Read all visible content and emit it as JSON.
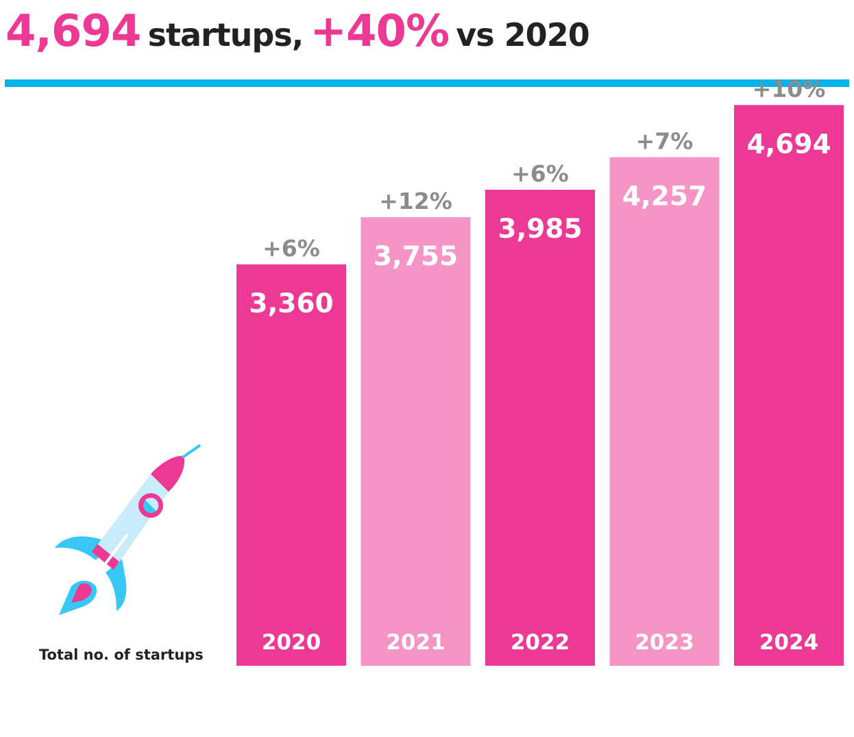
{
  "headline": {
    "total": "4,694",
    "text1": "startups,",
    "growth": "+40%",
    "text2": "vs 2020"
  },
  "axis_note": "Total no. of startups",
  "colors": {
    "accent_pink": "#ec3a94",
    "light_pink": "#f595c5",
    "divider_blue": "#00b3e8",
    "growth_gray": "#8c8c8c",
    "rocket_blue": "#38c6f4",
    "rocket_body": "#c9ecfb"
  },
  "icons": {
    "rocket": "rocket-icon"
  },
  "chart_data": {
    "type": "bar",
    "categories": [
      "2020",
      "2021",
      "2022",
      "2023",
      "2024"
    ],
    "values": [
      3360,
      3755,
      3985,
      4257,
      4694
    ],
    "value_labels": [
      "3,360",
      "3,755",
      "3,985",
      "4,257",
      "4,694"
    ],
    "growth_labels": [
      "+6%",
      "+12%",
      "+6%",
      "+7%",
      "+10%"
    ],
    "bar_colors": [
      "#ec3a94",
      "#f595c5",
      "#ec3a94",
      "#f595c5",
      "#ec3a94"
    ],
    "ylim": [
      0,
      5000
    ],
    "grid": false,
    "legend": "none"
  }
}
